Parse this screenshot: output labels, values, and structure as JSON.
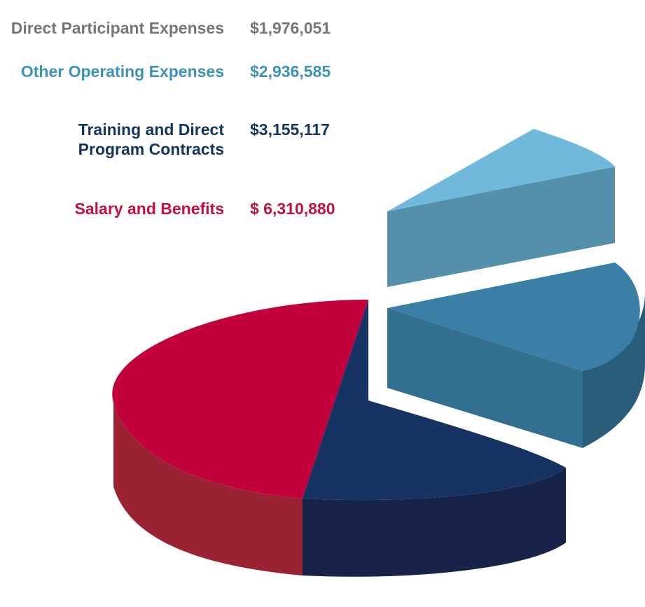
{
  "chart_data": {
    "type": "pie",
    "style": "3d-exploded",
    "title": "",
    "series": [
      {
        "name": "Direct Participant Expenses",
        "value_label": "$1,976,051",
        "value": 1976051,
        "color": "#767676",
        "slice_color": "#6fb9dd"
      },
      {
        "name": "Other Operating Expenses",
        "value_label": "$2,936,585",
        "value": 2936585,
        "color": "#3b93b8",
        "slice_color": "#3b7ea6"
      },
      {
        "name": "Training and Direct\nProgram Contracts",
        "value_label": "$3,155,117",
        "value": 3155117,
        "color": "#14365e",
        "slice_color": "#163364"
      },
      {
        "name": "Salary and Benefits",
        "value_label": "$ 6,310,880",
        "value": 6310880,
        "color": "#c2113f",
        "slice_color": "#c2003c"
      }
    ]
  }
}
